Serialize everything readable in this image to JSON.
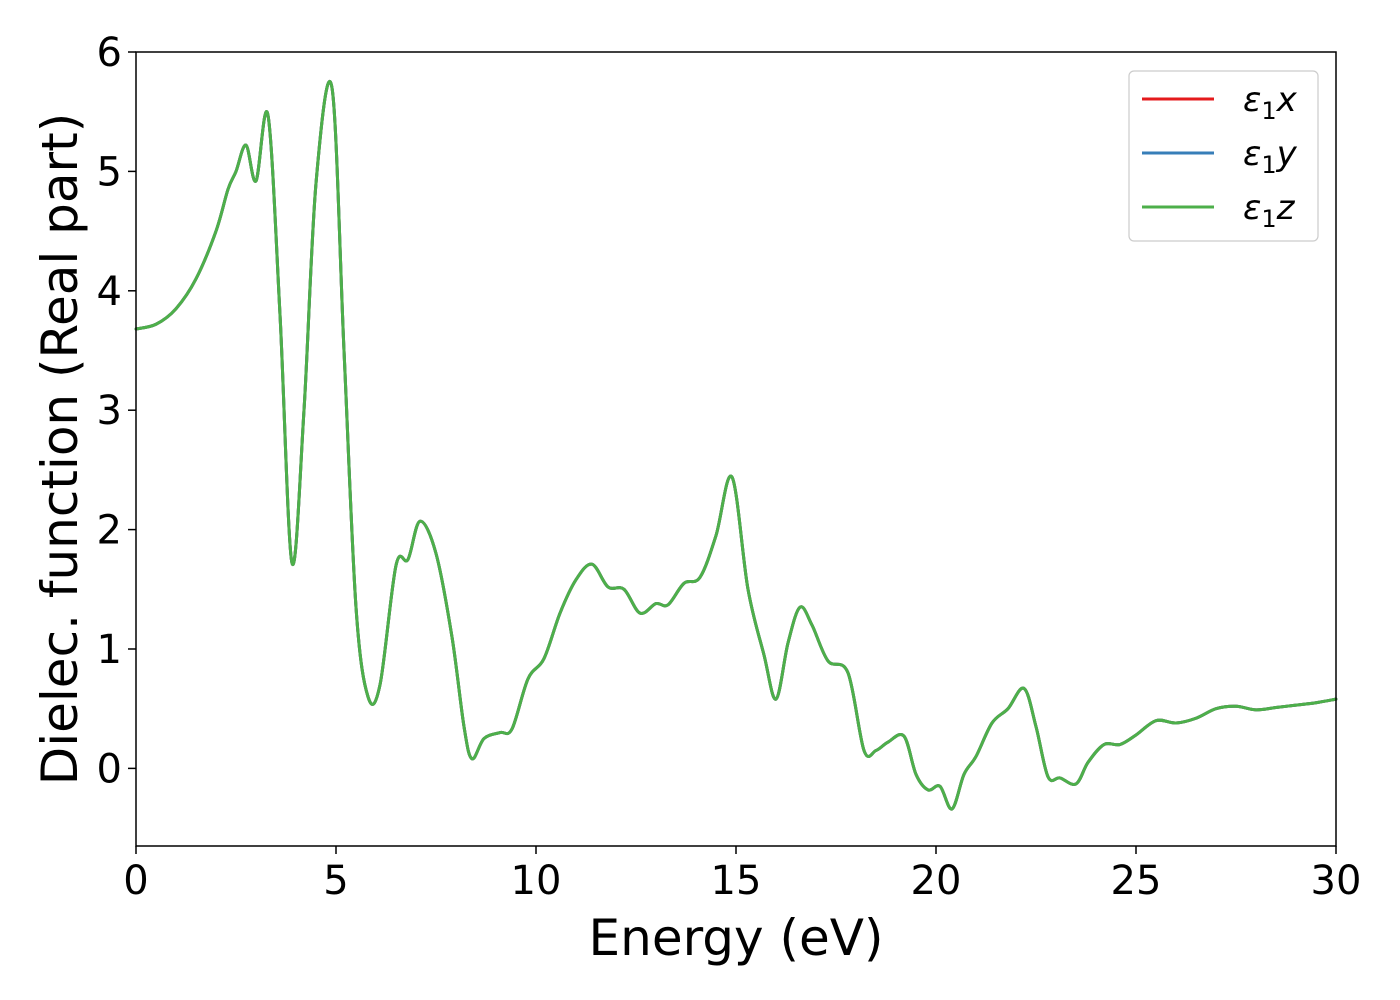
{
  "chart_data": {
    "type": "line",
    "xlabel": "Energy (eV)",
    "ylabel": "Dielec. function (Real part)",
    "xlim": [
      0,
      30
    ],
    "ylim": [
      -0.65,
      6
    ],
    "xticks": [
      "0",
      "5",
      "10",
      "15",
      "20",
      "25",
      "30"
    ],
    "xtick_values": [
      0,
      5,
      10,
      15,
      20,
      25,
      30
    ],
    "yticks": [
      "0",
      "1",
      "2",
      "3",
      "4",
      "5",
      "6"
    ],
    "ytick_values": [
      0,
      1,
      2,
      3,
      4,
      5,
      6
    ],
    "grid": false,
    "legend_position": "top-right",
    "legend": [
      {
        "main": "ε",
        "sub": "1",
        "var": "x"
      },
      {
        "main": "ε",
        "sub": "1",
        "var": "y"
      },
      {
        "main": "ε",
        "sub": "1",
        "var": "z"
      }
    ],
    "x": [
      0,
      0.5,
      1.0,
      1.5,
      2.0,
      2.3,
      2.5,
      2.75,
      3.0,
      3.3,
      3.6,
      3.9,
      4.2,
      4.5,
      4.9,
      5.2,
      5.5,
      5.8,
      6.1,
      6.5,
      6.8,
      7.1,
      7.5,
      7.9,
      8.2,
      8.4,
      8.7,
      9.1,
      9.4,
      9.8,
      10.2,
      10.6,
      11.0,
      11.4,
      11.8,
      12.2,
      12.6,
      13.0,
      13.3,
      13.7,
      14.1,
      14.5,
      14.9,
      15.3,
      15.7,
      16.0,
      16.3,
      16.6,
      16.9,
      17.3,
      17.8,
      18.2,
      18.5,
      18.8,
      19.2,
      19.5,
      19.8,
      20.1,
      20.4,
      20.7,
      21.0,
      21.4,
      21.8,
      22.2,
      22.5,
      22.8,
      23.1,
      23.5,
      23.8,
      24.2,
      24.6,
      25.0,
      25.5,
      26.0,
      26.5,
      27.0,
      27.5,
      28.0,
      28.5,
      29.0,
      29.5,
      30.0
    ],
    "series": [
      {
        "name": "ε1x",
        "color": "#e41a1c",
        "values": [
          3.68,
          3.72,
          3.85,
          4.1,
          4.5,
          4.85,
          5.0,
          5.22,
          4.92,
          5.47,
          3.8,
          1.72,
          3.0,
          4.9,
          5.7,
          3.5,
          1.35,
          0.6,
          0.7,
          1.7,
          1.75,
          2.07,
          1.8,
          1.1,
          0.35,
          0.08,
          0.25,
          0.3,
          0.33,
          0.75,
          0.92,
          1.3,
          1.58,
          1.71,
          1.52,
          1.5,
          1.3,
          1.38,
          1.37,
          1.55,
          1.6,
          1.95,
          2.44,
          1.5,
          0.95,
          0.58,
          1.05,
          1.35,
          1.2,
          0.9,
          0.8,
          0.15,
          0.15,
          0.22,
          0.27,
          -0.05,
          -0.18,
          -0.15,
          -0.34,
          -0.05,
          0.1,
          0.38,
          0.5,
          0.67,
          0.35,
          -0.07,
          -0.08,
          -0.13,
          0.05,
          0.2,
          0.2,
          0.28,
          0.4,
          0.38,
          0.42,
          0.5,
          0.52,
          0.49,
          0.51,
          0.53,
          0.55,
          0.58
        ]
      },
      {
        "name": "ε1y",
        "color": "#377eb8",
        "values": [
          3.68,
          3.72,
          3.85,
          4.1,
          4.5,
          4.85,
          5.0,
          5.22,
          4.92,
          5.47,
          3.8,
          1.72,
          3.0,
          4.9,
          5.7,
          3.5,
          1.35,
          0.6,
          0.7,
          1.7,
          1.75,
          2.07,
          1.8,
          1.1,
          0.35,
          0.08,
          0.25,
          0.3,
          0.33,
          0.75,
          0.92,
          1.3,
          1.58,
          1.71,
          1.52,
          1.5,
          1.3,
          1.38,
          1.37,
          1.55,
          1.6,
          1.95,
          2.44,
          1.5,
          0.95,
          0.58,
          1.05,
          1.35,
          1.2,
          0.9,
          0.8,
          0.15,
          0.15,
          0.22,
          0.27,
          -0.05,
          -0.18,
          -0.15,
          -0.34,
          -0.05,
          0.1,
          0.38,
          0.5,
          0.67,
          0.35,
          -0.07,
          -0.08,
          -0.13,
          0.05,
          0.2,
          0.2,
          0.28,
          0.4,
          0.38,
          0.42,
          0.5,
          0.52,
          0.49,
          0.51,
          0.53,
          0.55,
          0.58
        ]
      },
      {
        "name": "ε1z",
        "color": "#4daf4a",
        "values": [
          3.68,
          3.72,
          3.85,
          4.1,
          4.5,
          4.85,
          5.0,
          5.22,
          4.92,
          5.47,
          3.8,
          1.72,
          3.0,
          4.9,
          5.7,
          3.5,
          1.35,
          0.6,
          0.7,
          1.7,
          1.75,
          2.07,
          1.8,
          1.1,
          0.35,
          0.08,
          0.25,
          0.3,
          0.33,
          0.75,
          0.92,
          1.3,
          1.58,
          1.71,
          1.52,
          1.5,
          1.3,
          1.38,
          1.37,
          1.55,
          1.6,
          1.95,
          2.44,
          1.5,
          0.95,
          0.58,
          1.05,
          1.35,
          1.2,
          0.9,
          0.8,
          0.15,
          0.15,
          0.22,
          0.27,
          -0.05,
          -0.18,
          -0.15,
          -0.34,
          -0.05,
          0.1,
          0.38,
          0.5,
          0.67,
          0.35,
          -0.07,
          -0.08,
          -0.13,
          0.05,
          0.2,
          0.2,
          0.28,
          0.4,
          0.38,
          0.42,
          0.5,
          0.52,
          0.49,
          0.51,
          0.53,
          0.55,
          0.58
        ]
      }
    ]
  }
}
